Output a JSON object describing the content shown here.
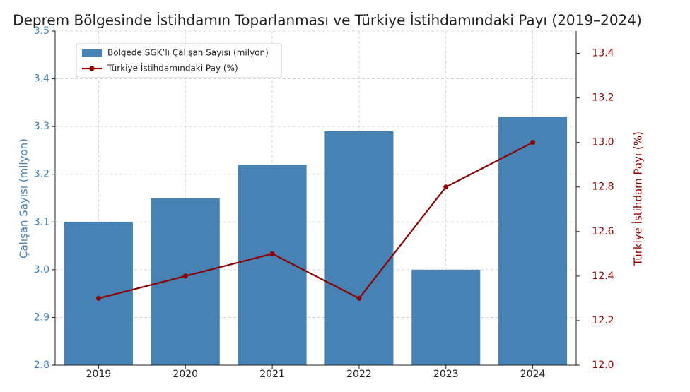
{
  "chart_data": {
    "type": "bar",
    "title": "Deprem Bölgesinde İstihdamın Toparlanması ve Türkiye İstihdamındaki Payı (2019–2024)",
    "y_label": "Çalışan Sayısı (milyon)",
    "y2_label": "Türkiye İstihdam Payı (%)",
    "categories": [
      "2019",
      "2020",
      "2021",
      "2022",
      "2023",
      "2024"
    ],
    "series": [
      {
        "name": "Bölgede SGK’lı Çalışan Sayısı (milyon)",
        "type": "bar",
        "color": "#4682b4",
        "values": [
          3.1,
          3.15,
          3.22,
          3.29,
          3.0,
          3.32
        ]
      },
      {
        "name": "Türkiye İstihdamındaki Pay (%)",
        "type": "line",
        "color": "#8b0000",
        "axis": "y2",
        "values": [
          12.3,
          12.4,
          12.5,
          12.3,
          12.8,
          13.0
        ]
      }
    ],
    "ylim": [
      2.8,
      3.5
    ],
    "yticks": [
      2.8,
      2.9,
      {
        "value": 3,
        "label": "3.0"
      },
      3.1,
      3.2,
      3.3,
      3.4,
      3.5
    ],
    "y2lim": [
      12,
      13.5
    ],
    "y2ticks": [
      {
        "value": 12,
        "label": "12.0"
      },
      12.2,
      12.4,
      12.6,
      12.8,
      {
        "value": 13,
        "label": "13.0"
      },
      13.2,
      13.4
    ],
    "grid": true,
    "legend": "upper left"
  }
}
